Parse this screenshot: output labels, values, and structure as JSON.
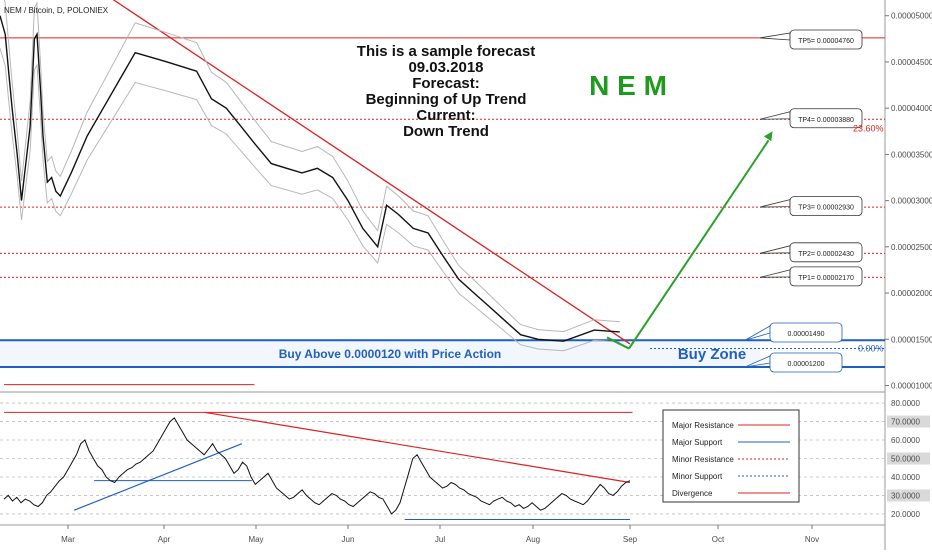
{
  "chart_data": [
    {
      "type": "line",
      "panel": "price",
      "title": "NEM / Bitcoin, D, POLONIEX",
      "x_tick_labels": [
        "Mar",
        "Apr",
        "May",
        "Jun",
        "Jul",
        "Aug",
        "Sep",
        "Oct",
        "Nov"
      ],
      "y_ticks": [
        1e-05,
        1.5e-05,
        2e-05,
        2.5e-05,
        3e-05,
        3.5e-05,
        4e-05,
        4.5e-05,
        5e-05
      ],
      "y_tick_labels": [
        "0.00001000",
        "0.00001500",
        "0.00002000",
        "0.00002500",
        "0.00003000",
        "0.00003500",
        "0.00004000",
        "0.00004500",
        "0.00005000"
      ],
      "ylim": [
        9.3e-06,
        5.17e-05
      ],
      "series": [
        {
          "color": "#111111",
          "points": [
            [
              0,
              5e-05
            ],
            [
              6,
              4.8e-05
            ],
            [
              10,
              4.4e-05
            ],
            [
              14,
              4e-05
            ],
            [
              20,
              3.5e-05
            ],
            [
              25,
              3e-05
            ],
            [
              30,
              3.4e-05
            ],
            [
              35,
              3.8e-05
            ],
            [
              40,
              4.75e-05
            ],
            [
              43,
              4.8e-05
            ],
            [
              47,
              4.2e-05
            ],
            [
              50,
              3.7e-05
            ],
            [
              55,
              3.2e-05
            ],
            [
              60,
              3.25e-05
            ],
            [
              65,
              3.1e-05
            ],
            [
              70,
              3.05e-05
            ],
            [
              75,
              3.15e-05
            ],
            [
              80,
              3.3e-05
            ],
            [
              85,
              3.7e-05
            ],
            [
              90,
              4e-05
            ],
            [
              95,
              4.3e-05
            ],
            [
              100,
              4.6e-05
            ],
            [
              105,
              4.55e-05
            ],
            [
              110,
              4.5e-05
            ],
            [
              115,
              4.45e-05
            ],
            [
              120,
              4.4e-05
            ],
            [
              125,
              4.1e-05
            ],
            [
              130,
              4e-05
            ],
            [
              135,
              3.8e-05
            ],
            [
              140,
              3.6e-05
            ],
            [
              145,
              3.4e-05
            ],
            [
              150,
              3.35e-05
            ],
            [
              155,
              3.3e-05
            ],
            [
              160,
              3.35e-05
            ],
            [
              165,
              3.25e-05
            ],
            [
              170,
              3e-05
            ],
            [
              175,
              2.7e-05
            ],
            [
              180,
              2.5e-05
            ],
            [
              183,
              2.95e-05
            ],
            [
              187,
              2.85e-05
            ],
            [
              192,
              2.7e-05
            ],
            [
              197,
              2.65e-05
            ],
            [
              202,
              2.4e-05
            ],
            [
              207,
              2.15e-05
            ],
            [
              212,
              2e-05
            ],
            [
              217,
              1.85e-05
            ],
            [
              222,
              1.7e-05
            ],
            [
              227,
              1.55e-05
            ],
            [
              232,
              1.5e-05
            ],
            [
              237,
              1.48e-05
            ],
            [
              243,
              1.6e-05
            ],
            [
              248,
              1.58e-05
            ]
          ]
        }
      ],
      "resistance_line": {
        "label": "",
        "color": "#e02020",
        "from": [
          92,
          5.2e-05
        ],
        "to": [
          250,
          1.45e-05
        ]
      },
      "forecast_arrow": {
        "color": "#2aa12a",
        "from": [
          252,
          1.4e-05
        ],
        "to": [
          318,
          3.75e-05
        ]
      },
      "levels": [
        {
          "label": "TP5",
          "value": 4.76e-05,
          "text": "TP5= 0.00004760",
          "style": "solid",
          "color": "#e02020"
        },
        {
          "label": "TP4",
          "value": 3.88e-05,
          "text": "TP4= 0.00003880",
          "style": "dotted",
          "color": "#e02020",
          "fib": "23.60%"
        },
        {
          "label": "TP3",
          "value": 2.93e-05,
          "text": "TP3= 0.00002930",
          "style": "dotted",
          "color": "#e02020"
        },
        {
          "label": "TP2",
          "value": 2.43e-05,
          "text": "TP2= 0.00002430",
          "style": "dotted",
          "color": "#e02020"
        },
        {
          "label": "TP1",
          "value": 2.17e-05,
          "text": "TP1= 0.00002170",
          "style": "dotted",
          "color": "#e02020"
        },
        {
          "label": "Zone high",
          "value": 1.49e-05,
          "text": "0.00001490",
          "style": "solid",
          "color": "#1f5fbf"
        },
        {
          "label": "Zone low",
          "value": 1.2e-05,
          "text": "0.00001200",
          "style": "solid",
          "color": "#1f5fbf"
        }
      ],
      "fib_zero": {
        "value": 1.4e-05,
        "text": "0.00%"
      },
      "annotations": {
        "forecast_lines": [
          "This is a sample forecast",
          "09.03.2018",
          "Forecast:",
          "Beginning of Up Trend",
          "Current:",
          "Down Trend"
        ],
        "symbol": "N  E  M",
        "buy_text": "Buy Above 0.0000120 with Price Action",
        "buy_zone": "Buy Zone"
      },
      "colors": {
        "resistance": "#e02020",
        "support": "#1f5fbf",
        "arrow": "#2aa12a",
        "symbol": "#1e9a1e",
        "price": "#111111"
      }
    },
    {
      "type": "line",
      "panel": "oscillator",
      "y_ticks": [
        20,
        30,
        40,
        50,
        60,
        70,
        80
      ],
      "y_tick_labels": [
        "20.0000",
        "30.0000",
        "40.0000",
        "50.0000",
        "60.0000",
        "70.0000",
        "80.0000"
      ],
      "highlighted_ticks": [
        "70.0000",
        "50.0000",
        "30.0000"
      ],
      "ylim": [
        14,
        86
      ],
      "series": [
        {
          "color": "#111111",
          "values": [
            28,
            30,
            27,
            29,
            26,
            28,
            27,
            25,
            24,
            26,
            30,
            32,
            35,
            38,
            40,
            44,
            48,
            52,
            58,
            60,
            54,
            50,
            46,
            44,
            40,
            38,
            37,
            40,
            42,
            44,
            45,
            47,
            48,
            50,
            52,
            54,
            58,
            62,
            66,
            70,
            72,
            68,
            64,
            60,
            58,
            56,
            54,
            52,
            55,
            58,
            54,
            52,
            50,
            46,
            42,
            44,
            48,
            46,
            40,
            36,
            38,
            40,
            42,
            38,
            34,
            32,
            30,
            28,
            29,
            31,
            33,
            30,
            28,
            26,
            25,
            27,
            29,
            31,
            30,
            28,
            27,
            25,
            24,
            26,
            28,
            30,
            32,
            31,
            29,
            28,
            24,
            20,
            22,
            26,
            34,
            42,
            50,
            52,
            48,
            44,
            40,
            38,
            36,
            34,
            35,
            37,
            36,
            34,
            33,
            31,
            30,
            29,
            27,
            26,
            25,
            27,
            28,
            29,
            27,
            26,
            24,
            25,
            23,
            24,
            26,
            24,
            22,
            23,
            25,
            27,
            29,
            31,
            30,
            28,
            27,
            26,
            25,
            27,
            30,
            33,
            36,
            34,
            31,
            30,
            32,
            35,
            37,
            38
          ]
        }
      ],
      "lines": [
        {
          "name": "Major Resistance",
          "kind": "horizontal",
          "value": 90,
          "x_range": [
            0,
            100
          ],
          "color": "#e02020",
          "style": "solid"
        },
        {
          "name": "Major Resistance",
          "kind": "horizontal",
          "value": 75,
          "x_range": [
            0,
            251
          ],
          "color": "#e02020",
          "style": "solid"
        },
        {
          "name": "Major Support",
          "kind": "horizontal",
          "value": 38,
          "x_range": [
            36,
            99
          ],
          "color": "#1f5fbf",
          "style": "solid"
        },
        {
          "name": "Major Support",
          "kind": "horizontal",
          "value": 17,
          "x_range": [
            160,
            250
          ],
          "color": "#1f5fbf",
          "style": "solid"
        },
        {
          "name": "Major Support",
          "kind": "trend",
          "from": [
            28,
            22
          ],
          "to": [
            95,
            58
          ],
          "color": "#1f5fbf",
          "style": "solid"
        },
        {
          "name": "Divergence",
          "kind": "trend",
          "from": [
            80,
            75
          ],
          "to": [
            250,
            37
          ],
          "color": "#e02020",
          "style": "solid"
        }
      ],
      "legend": {
        "position": "right",
        "entries": [
          {
            "name": "Major Resistance",
            "color": "#e02020",
            "style": "solid"
          },
          {
            "name": "Major Support",
            "color": "#1f5fbf",
            "style": "solid"
          },
          {
            "name": "Minor Resistance",
            "color": "#e02020",
            "style": "dotted"
          },
          {
            "name": "Minor Support",
            "color": "#1f5fbf",
            "style": "dotted"
          },
          {
            "name": "Divergence",
            "color": "#e02020",
            "style": "solid"
          }
        ]
      }
    }
  ]
}
